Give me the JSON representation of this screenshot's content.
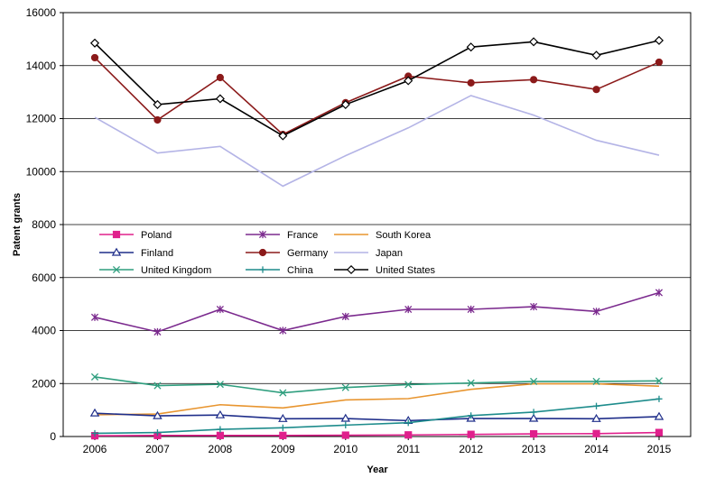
{
  "chart_data": {
    "type": "line",
    "xlabel": "Year",
    "ylabel": "Patent grants",
    "ylim": [
      0,
      16000
    ],
    "yticks": [
      0,
      2000,
      4000,
      6000,
      8000,
      10000,
      12000,
      14000,
      16000
    ],
    "ytick_labels": [
      "0",
      "2000",
      "4000",
      "6000",
      "8000",
      "10000",
      "12000",
      "14000",
      "16000"
    ],
    "x": [
      2006,
      2007,
      2008,
      2009,
      2010,
      2011,
      2012,
      2013,
      2014,
      2015
    ],
    "x_labels": [
      "2006",
      "2007",
      "2008",
      "2009",
      "2010",
      "2011",
      "2012",
      "2013",
      "2014",
      "2015"
    ],
    "grid": "horizontal",
    "legend_position": "center-left",
    "series": [
      {
        "name": "Poland",
        "color": "#e0208c",
        "marker": "square",
        "values": [
          30,
          40,
          40,
          40,
          50,
          60,
          80,
          100,
          110,
          150
        ]
      },
      {
        "name": "France",
        "color": "#7b2a8e",
        "marker": "asterisk",
        "values": [
          4500,
          3950,
          4800,
          4000,
          4530,
          4800,
          4800,
          4900,
          4720,
          5430
        ]
      },
      {
        "name": "South Korea",
        "color": "#e8952f",
        "marker": "none",
        "values": [
          820,
          850,
          1200,
          1080,
          1380,
          1430,
          1780,
          1990,
          1990,
          1900
        ]
      },
      {
        "name": "Finland",
        "color": "#1f2e8a",
        "marker": "triangle",
        "values": [
          880,
          780,
          810,
          670,
          680,
          600,
          680,
          680,
          670,
          750
        ]
      },
      {
        "name": "Germany",
        "color": "#8b1a1a",
        "marker": "circle",
        "values": [
          14300,
          11950,
          13550,
          11400,
          12600,
          13600,
          13350,
          13470,
          13100,
          14130
        ]
      },
      {
        "name": "Japan",
        "color": "#b4b4e6",
        "marker": "none",
        "values": [
          12050,
          10700,
          10950,
          9450,
          10600,
          11650,
          12870,
          12130,
          11180,
          10620
        ]
      },
      {
        "name": "United Kingdom",
        "color": "#2e9e7e",
        "marker": "x",
        "values": [
          2250,
          1920,
          1970,
          1650,
          1850,
          1960,
          2020,
          2080,
          2080,
          2100
        ]
      },
      {
        "name": "China",
        "color": "#1e8c8c",
        "marker": "plus",
        "values": [
          120,
          150,
          270,
          330,
          430,
          520,
          790,
          920,
          1150,
          1420
        ]
      },
      {
        "name": "United States",
        "color": "#000000",
        "marker": "diamond",
        "values": [
          14850,
          12530,
          12750,
          11350,
          12530,
          13430,
          14700,
          14900,
          14390,
          14950
        ]
      }
    ]
  }
}
